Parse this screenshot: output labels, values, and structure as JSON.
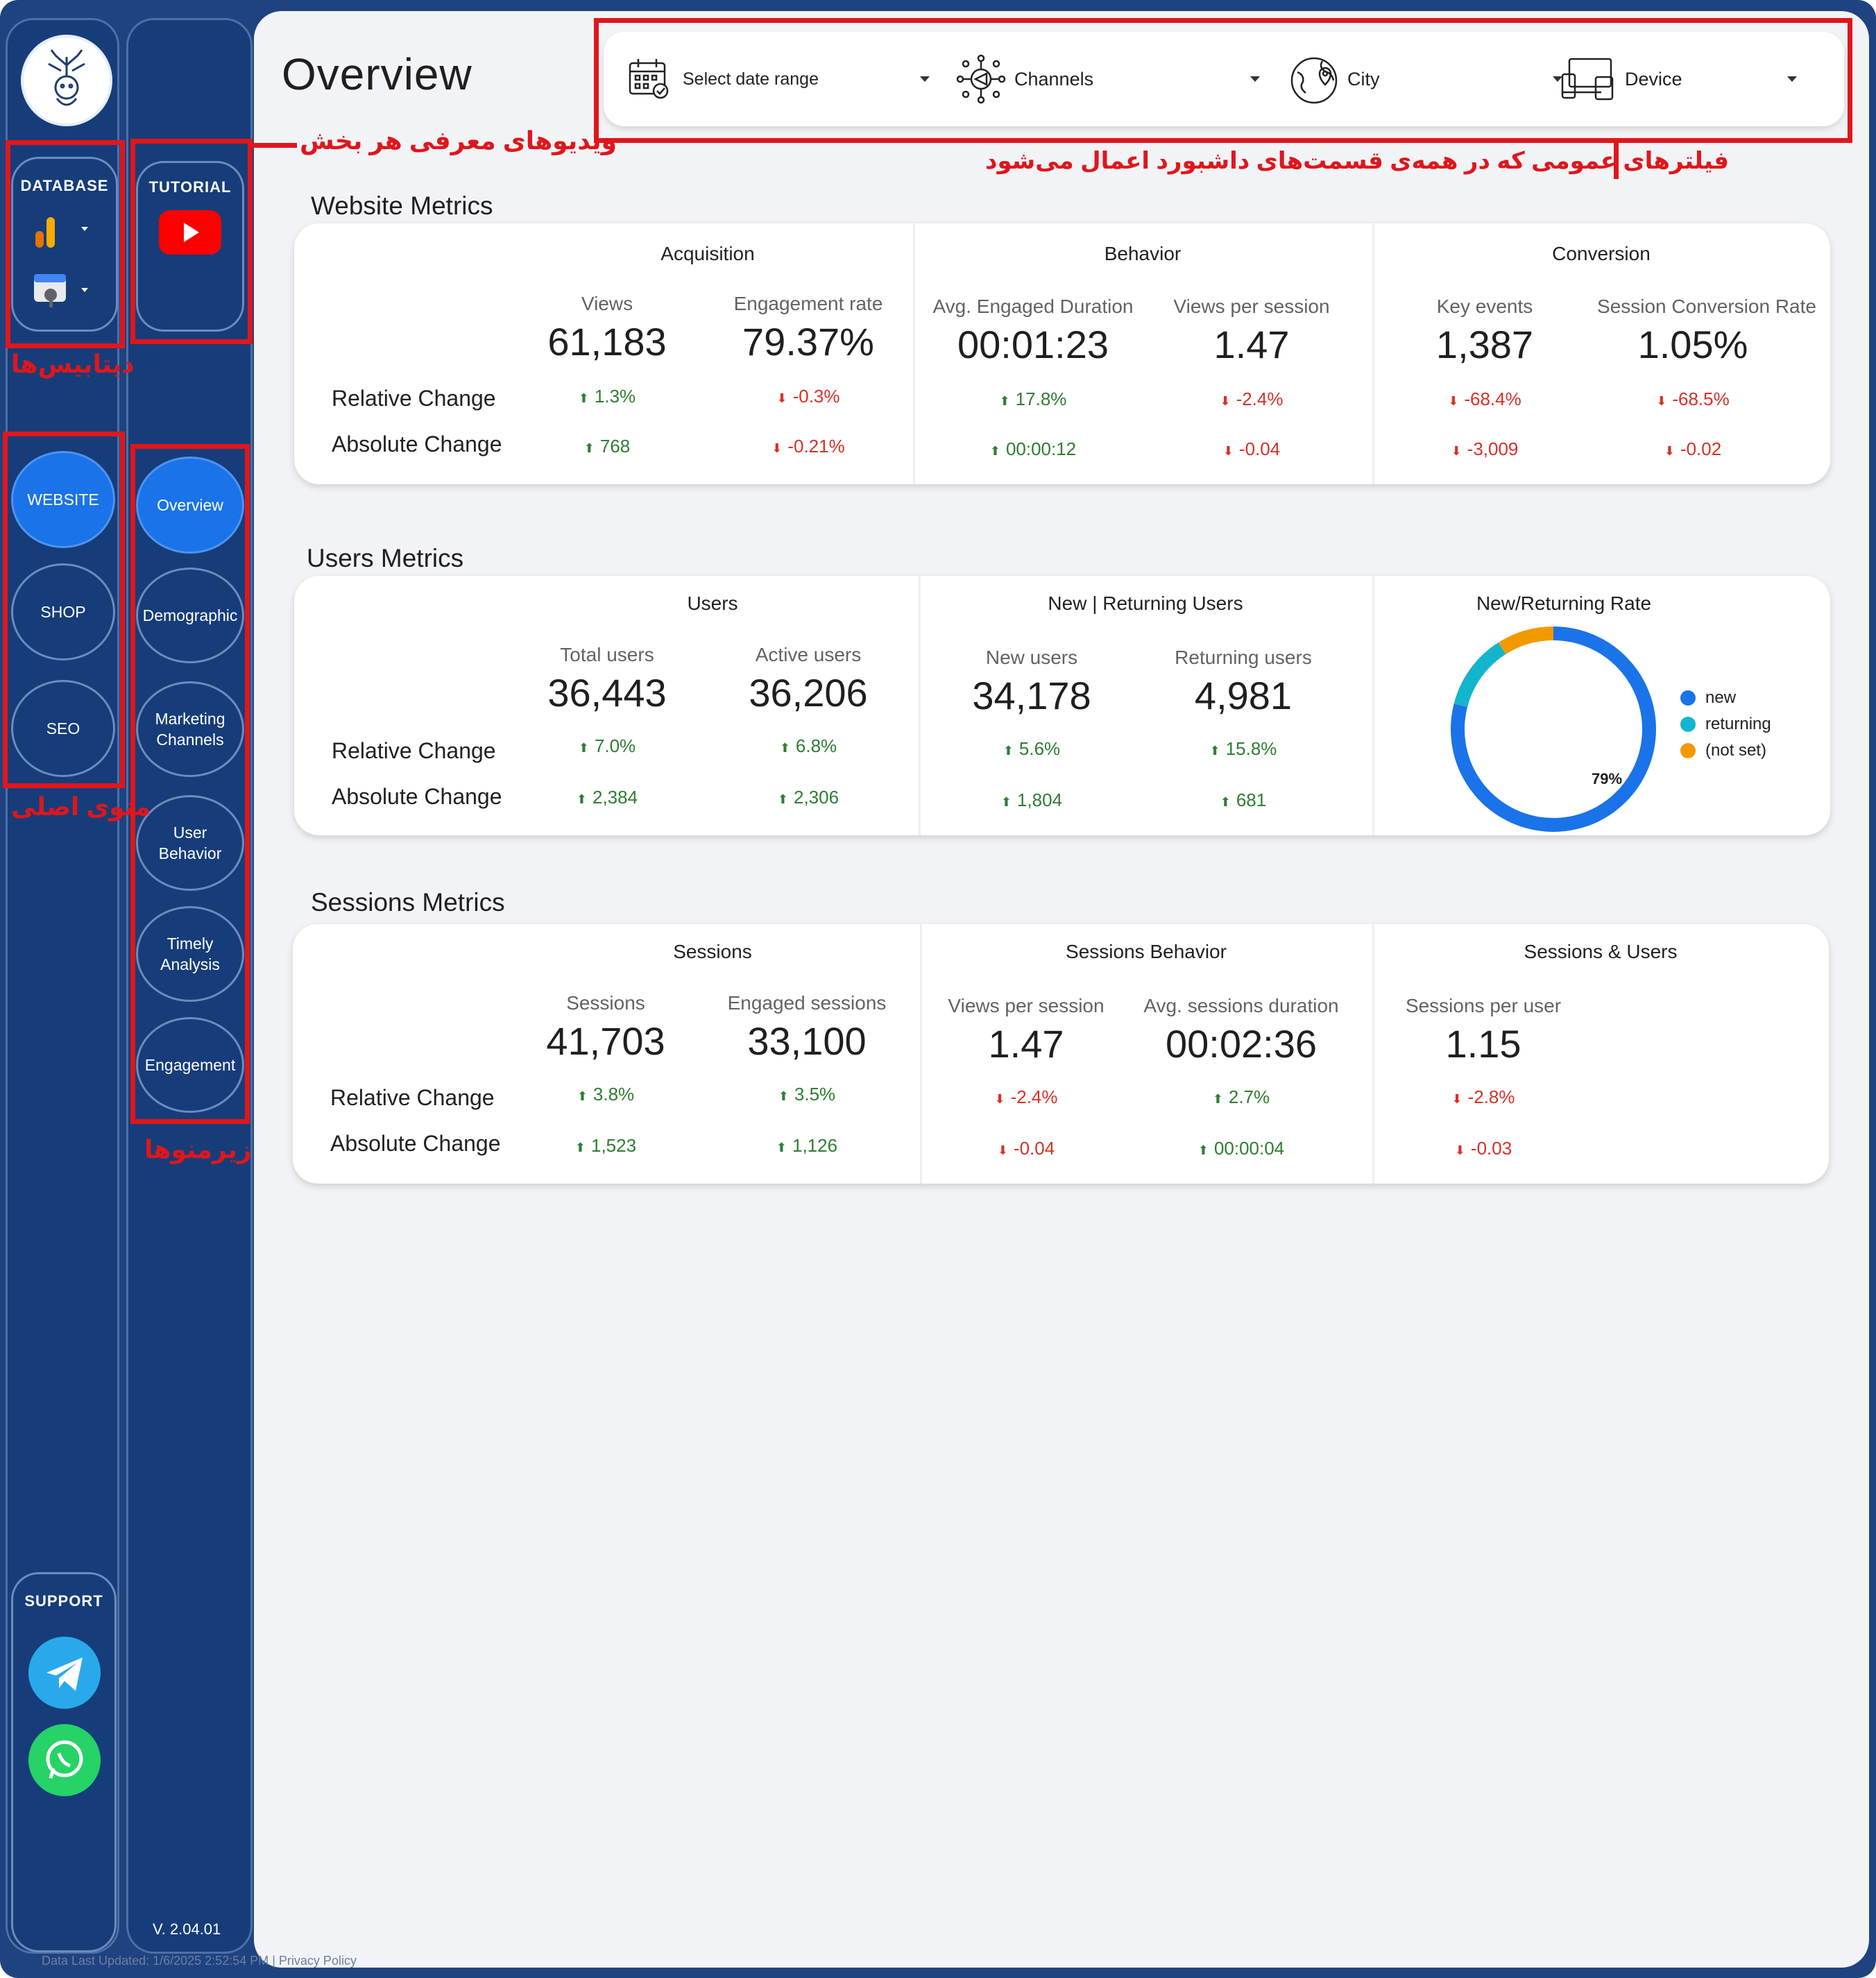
{
  "page": {
    "title": "Overview",
    "version": "V. 2.04.01"
  },
  "database": {
    "title": "DATABASE",
    "items": [
      {
        "icon": "google-analytics-icon"
      },
      {
        "icon": "search-console-icon"
      }
    ]
  },
  "tutorial": {
    "title": "TUTORIAL",
    "icon": "youtube-play-icon"
  },
  "main_menu": [
    {
      "label": "WEBSITE",
      "active": true
    },
    {
      "label": "SHOP",
      "active": false
    },
    {
      "label": "SEO",
      "active": false
    }
  ],
  "sub_menu": [
    {
      "label": "Overview",
      "active": true
    },
    {
      "label": "Demographic",
      "active": false
    },
    {
      "label": "Marketing Channels",
      "active": false
    },
    {
      "label": "User Behavior",
      "active": false
    },
    {
      "label": "Timely Analysis",
      "active": false
    },
    {
      "label": "Engagement",
      "active": false
    }
  ],
  "support": {
    "title": "SUPPORT",
    "items": [
      {
        "icon": "telegram-icon"
      },
      {
        "icon": "whatsapp-icon"
      }
    ]
  },
  "filters": [
    {
      "icon": "calendar-icon",
      "label": "Select date range"
    },
    {
      "icon": "channels-icon",
      "label": "Channels"
    },
    {
      "icon": "globe-pin-icon",
      "label": "City"
    },
    {
      "icon": "devices-icon",
      "label": "Device"
    }
  ],
  "annotations": {
    "tutorial_note": "ویدیوهای معرفی هر بخش",
    "filters_note": "فیلترهای عمومی که در همه‌ی قسمت‌های داشبورد اعمال می‌شود",
    "database_note": "دیتابیس‌ها",
    "main_menu_note": "منوی اصلی",
    "sub_menu_note": "زیرمنوها"
  },
  "row_labels": {
    "relative": "Relative Change",
    "absolute": "Absolute Change"
  },
  "website_metrics": {
    "title": "Website Metrics",
    "groups": [
      {
        "title": "Acquisition",
        "metrics": [
          {
            "label": "Views",
            "value": "61,183",
            "rel": "1.3%",
            "rel_dir": "up",
            "abs": "768",
            "abs_dir": "up"
          },
          {
            "label": "Engagement rate",
            "value": "79.37%",
            "rel": "-0.3%",
            "rel_dir": "down",
            "abs": "-0.21%",
            "abs_dir": "down"
          }
        ]
      },
      {
        "title": "Behavior",
        "metrics": [
          {
            "label": "Avg. Engaged Duration",
            "value": "00:01:23",
            "rel": "17.8%",
            "rel_dir": "up",
            "abs": "00:00:12",
            "abs_dir": "up"
          },
          {
            "label": "Views per session",
            "value": "1.47",
            "rel": "-2.4%",
            "rel_dir": "down",
            "abs": "-0.04",
            "abs_dir": "down"
          }
        ]
      },
      {
        "title": "Conversion",
        "metrics": [
          {
            "label": "Key events",
            "value": "1,387",
            "rel": "-68.4%",
            "rel_dir": "down",
            "abs": "-3,009",
            "abs_dir": "down"
          },
          {
            "label": "Session Conversion Rate",
            "value": "1.05%",
            "rel": "-68.5%",
            "rel_dir": "down",
            "abs": "-0.02",
            "abs_dir": "down"
          }
        ]
      }
    ]
  },
  "users_metrics": {
    "title": "Users Metrics",
    "groups": [
      {
        "title": "Users",
        "metrics": [
          {
            "label": "Total users",
            "value": "36,443",
            "rel": "7.0%",
            "rel_dir": "up",
            "abs": "2,384",
            "abs_dir": "up"
          },
          {
            "label": "Active users",
            "value": "36,206",
            "rel": "6.8%",
            "rel_dir": "up",
            "abs": "2,306",
            "abs_dir": "up"
          }
        ]
      },
      {
        "title": "New | Returning Users",
        "metrics": [
          {
            "label": "New users",
            "value": "34,178",
            "rel": "5.6%",
            "rel_dir": "up",
            "abs": "1,804",
            "abs_dir": "up"
          },
          {
            "label": "Returning users",
            "value": "4,981",
            "rel": "15.8%",
            "rel_dir": "up",
            "abs": "681",
            "abs_dir": "up"
          }
        ]
      }
    ],
    "donut": {
      "title": "New/Returning Rate",
      "center_label": "79%",
      "slices": [
        {
          "name": "new",
          "value": 79,
          "color": "#1a73e8"
        },
        {
          "name": "returning",
          "value": 12,
          "color": "#12b5cb"
        },
        {
          "name": "(not set)",
          "value": 9,
          "color": "#f29900"
        }
      ]
    }
  },
  "sessions_metrics": {
    "title": "Sessions Metrics",
    "groups": [
      {
        "title": "Sessions",
        "metrics": [
          {
            "label": "Sessions",
            "value": "41,703",
            "rel": "3.8%",
            "rel_dir": "up",
            "abs": "1,523",
            "abs_dir": "up"
          },
          {
            "label": "Engaged sessions",
            "value": "33,100",
            "rel": "3.5%",
            "rel_dir": "up",
            "abs": "1,126",
            "abs_dir": "up"
          }
        ]
      },
      {
        "title": "Sessions Behavior",
        "metrics": [
          {
            "label": "Views per session",
            "value": "1.47",
            "rel": "-2.4%",
            "rel_dir": "down",
            "abs": "-0.04",
            "abs_dir": "down"
          },
          {
            "label": "Avg. sessions duration",
            "value": "00:02:36",
            "rel": "2.7%",
            "rel_dir": "up",
            "abs": "00:00:04",
            "abs_dir": "up"
          }
        ]
      },
      {
        "title": "Sessions & Users",
        "metrics": [
          {
            "label": "Sessions per user",
            "value": "1.15",
            "rel": "-2.8%",
            "rel_dir": "down",
            "abs": "-0.03",
            "abs_dir": "down"
          }
        ]
      }
    ]
  },
  "footer": {
    "updated": "Data Last Updated: 1/6/2025 2:52:54 PM",
    "privacy": "Privacy Policy"
  }
}
